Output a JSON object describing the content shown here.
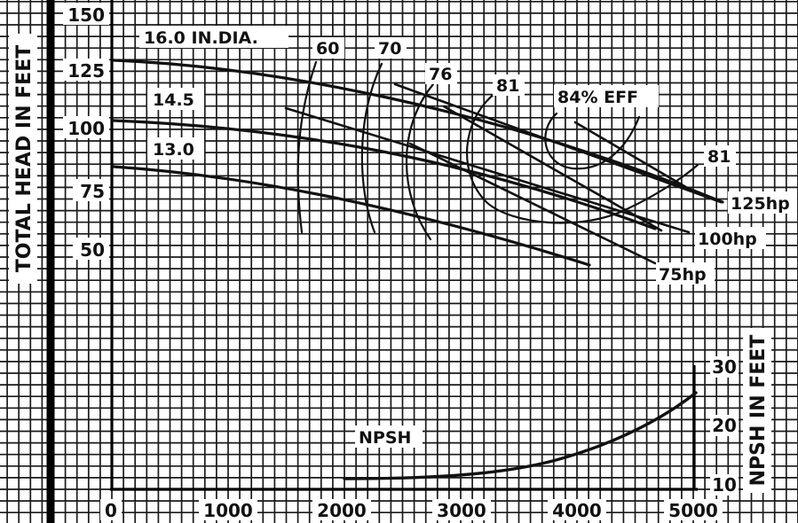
{
  "chart_data": {
    "type": "line",
    "title": "",
    "y_axis_label": "TOTAL HEAD IN FEET",
    "y2_axis_label": "NPSH IN FEET",
    "x_ticks": [
      "0",
      "1000",
      "2000",
      "3000",
      "4000",
      "5000"
    ],
    "y_ticks": [
      "150",
      "125",
      "100",
      "75",
      "50"
    ],
    "y2_ticks": [
      "30",
      "20",
      "10"
    ],
    "xlim": [
      0,
      5000
    ],
    "ylim": [
      0,
      150
    ],
    "y2lim": [
      10,
      30
    ],
    "grid": true,
    "head_curves": [
      {
        "name": "16.0 IN.DIA.",
        "points": [
          [
            0,
            129
          ],
          [
            1000,
            126
          ],
          [
            2000,
            120
          ],
          [
            3000,
            111
          ],
          [
            4000,
            97
          ],
          [
            5000,
            81
          ]
        ]
      },
      {
        "name": "14.5",
        "points": [
          [
            0,
            102
          ],
          [
            1000,
            99
          ],
          [
            2000,
            93
          ],
          [
            3000,
            82
          ],
          [
            4000,
            69
          ],
          [
            4500,
            62
          ]
        ]
      },
      {
        "name": "13.0",
        "points": [
          [
            0,
            83
          ],
          [
            1000,
            79
          ],
          [
            2000,
            72
          ],
          [
            3000,
            61
          ],
          [
            4000,
            46
          ]
        ]
      }
    ],
    "efficiency_curves": [
      {
        "name": "60"
      },
      {
        "name": "70"
      },
      {
        "name": "76"
      },
      {
        "name": "81"
      },
      {
        "name": "84% EFF"
      },
      {
        "name": "81"
      }
    ],
    "horsepower_lines": [
      {
        "name": "125hp"
      },
      {
        "name": "100hp"
      },
      {
        "name": "75hp"
      }
    ],
    "npsh_curve": {
      "name": "NPSH",
      "points": [
        [
          2000,
          11
        ],
        [
          3000,
          11.8
        ],
        [
          3500,
          13
        ],
        [
          4000,
          15.5
        ],
        [
          4500,
          19.5
        ],
        [
          5000,
          25
        ]
      ]
    }
  }
}
